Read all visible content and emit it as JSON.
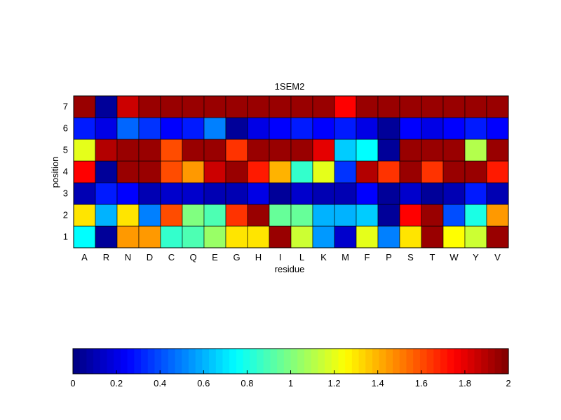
{
  "chart_data": {
    "type": "heatmap",
    "title": "1SEM2",
    "xlabel": "residue",
    "ylabel": "position",
    "x_categories": [
      "A",
      "R",
      "N",
      "D",
      "C",
      "Q",
      "E",
      "G",
      "H",
      "I",
      "L",
      "K",
      "M",
      "F",
      "P",
      "S",
      "T",
      "W",
      "Y",
      "V"
    ],
    "y_categories": [
      "1",
      "2",
      "3",
      "4",
      "5",
      "6",
      "7"
    ],
    "values": [
      [
        0.75,
        0.05,
        1.45,
        1.45,
        0.85,
        0.9,
        1.05,
        1.3,
        1.3,
        1.95,
        1.15,
        0.55,
        0.15,
        1.2,
        0.5,
        1.3,
        1.95,
        1.25,
        1.15,
        1.95
      ],
      [
        1.3,
        0.6,
        1.3,
        0.5,
        1.6,
        1.0,
        0.9,
        1.65,
        1.95,
        0.95,
        0.95,
        0.6,
        0.6,
        0.65,
        0.05,
        1.75,
        1.95,
        0.4,
        0.8,
        1.45
      ],
      [
        0.1,
        0.3,
        0.25,
        0.1,
        0.15,
        0.15,
        0.1,
        0.1,
        0.2,
        0.05,
        0.15,
        0.1,
        0.1,
        0.25,
        0.05,
        0.15,
        0.05,
        0.1,
        0.3,
        0.1
      ],
      [
        1.75,
        0.05,
        1.95,
        1.95,
        1.6,
        1.45,
        1.85,
        1.95,
        1.7,
        1.4,
        0.85,
        1.2,
        0.35,
        1.9,
        1.65,
        1.95,
        1.65,
        1.95,
        1.95,
        1.7
      ],
      [
        1.2,
        1.9,
        1.95,
        1.95,
        1.6,
        1.95,
        1.95,
        1.65,
        1.95,
        1.95,
        1.95,
        1.8,
        0.65,
        0.75,
        0.05,
        1.95,
        1.95,
        1.95,
        1.1,
        1.95
      ],
      [
        0.3,
        0.2,
        0.45,
        0.35,
        0.25,
        0.3,
        0.5,
        0.05,
        0.2,
        0.25,
        0.3,
        0.25,
        0.3,
        0.2,
        0.05,
        0.25,
        0.2,
        0.25,
        0.3,
        0.25
      ],
      [
        1.95,
        0.05,
        1.85,
        1.95,
        1.95,
        1.95,
        1.95,
        1.95,
        1.95,
        1.95,
        1.95,
        1.95,
        1.75,
        1.95,
        1.95,
        1.95,
        1.95,
        1.95,
        1.95,
        1.95
      ]
    ],
    "colormap": "jet",
    "clim": [
      0,
      2
    ],
    "colorbar": {
      "orientation": "horizontal",
      "placement": "bottom",
      "ticks": [
        "0",
        "0.2",
        "0.4",
        "0.6",
        "0.8",
        "1",
        "1.2",
        "1.4",
        "1.6",
        "1.8",
        "2"
      ]
    }
  }
}
